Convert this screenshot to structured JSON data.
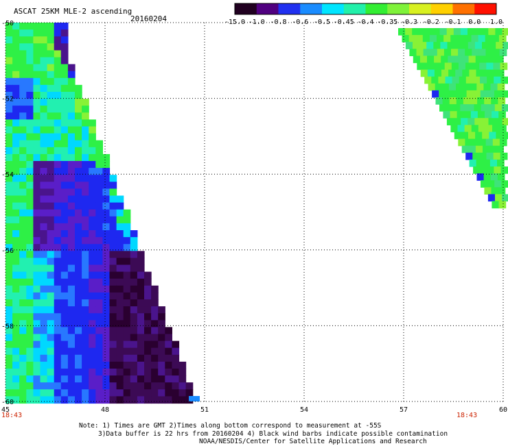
{
  "header": {
    "title": "ASCAT 25KM MLE-2 ascending",
    "date": "20160204"
  },
  "colorbar": {
    "tick_labels": [
      "-15.0",
      "-1.0",
      "-0.8",
      "-0.6",
      "-0.5",
      "-0.45",
      "-0.4",
      "-0.35",
      "-0.3",
      "-0.2",
      "-0.1",
      "0.0",
      "1.0"
    ],
    "stops": [
      "#200020",
      "#500080",
      "#2030f0",
      "#1a8cff",
      "#00e5ff",
      "#22f0aa",
      "#33ee33",
      "#7ff23a",
      "#d8f020",
      "#ffd000",
      "#ff7000",
      "#ff1000"
    ]
  },
  "map": {
    "lon_min": 45,
    "lon_max": 60,
    "lat_top": -50,
    "lat_bottom": -60,
    "x_ticks": [
      "45",
      "48",
      "51",
      "54",
      "57",
      "60"
    ],
    "y_ticks": [
      "-50",
      "-52",
      "-54",
      "-56",
      "-58",
      "-60"
    ],
    "time_labels": {
      "left": "18:43",
      "right": "18:43"
    },
    "colors": {
      "grid": "#000000",
      "time_label": "#cc2200"
    }
  },
  "notes": {
    "line1": "Note: 1) Times are GMT 2)Times along bottom correspond to measurement at -55S",
    "line2": "3)Data buffer is 22 hrs from 20160204 4) Black wind barbs indicate possible contamination",
    "line3": "NOAA/NESDIS/Center for Satellite Applications and Research"
  }
}
